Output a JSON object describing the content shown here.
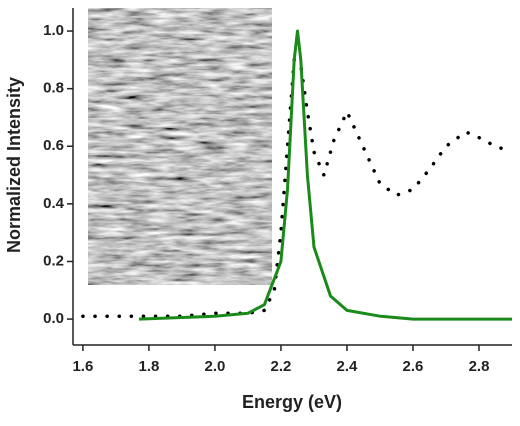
{
  "chart_data": {
    "type": "line",
    "x_label": "Energy (eV)",
    "y_label": "Normalized Intensity",
    "xlim": [
      1.57,
      2.9
    ],
    "ylim": [
      -0.09,
      1.08
    ],
    "xticks": [
      1.6,
      1.8,
      {
        "value": 2,
        "label": "2.0"
      },
      2.2,
      2.4,
      2.6,
      2.8
    ],
    "yticks": [
      {
        "value": 0,
        "label": "0.0"
      },
      0.2,
      0.4,
      0.6,
      0.8,
      {
        "value": 1,
        "label": "1.0"
      }
    ],
    "series": [
      {
        "color": "#000000",
        "style": "dotted",
        "x": [
          1.6,
          1.7,
          1.8,
          1.9,
          2.0,
          2.1,
          2.15,
          2.18,
          2.2,
          2.22,
          2.24,
          2.26,
          2.28,
          2.3,
          2.33,
          2.36,
          2.4,
          2.44,
          2.5,
          2.55,
          2.6,
          2.65,
          2.7,
          2.76,
          2.8,
          2.85,
          2.9
        ],
        "values": [
          0.01,
          0.01,
          0.01,
          0.01,
          0.02,
          0.02,
          0.03,
          0.1,
          0.3,
          0.6,
          0.9,
          0.88,
          0.72,
          0.58,
          0.5,
          0.62,
          0.72,
          0.62,
          0.47,
          0.43,
          0.45,
          0.52,
          0.6,
          0.65,
          0.63,
          0.6,
          0.58
        ]
      },
      {
        "color": "#1a8a1a",
        "style": "solid",
        "x": [
          1.77,
          2.0,
          2.1,
          2.15,
          2.2,
          2.22,
          2.24,
          2.25,
          2.26,
          2.28,
          2.3,
          2.35,
          2.4,
          2.5,
          2.6,
          2.9
        ],
        "values": [
          0,
          0.01,
          0.02,
          0.05,
          0.2,
          0.45,
          0.9,
          1.0,
          0.9,
          0.5,
          0.25,
          0.08,
          0.03,
          0.01,
          0,
          0
        ]
      }
    ]
  }
}
